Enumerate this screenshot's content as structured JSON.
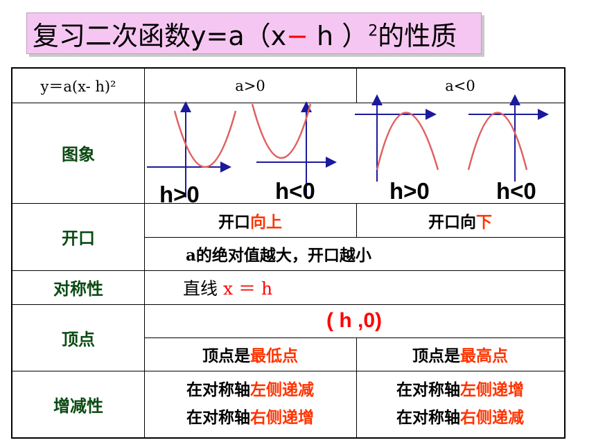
{
  "title": {
    "prefix": "复习二次函数y=a（x",
    "minus": "−",
    "suffix": " h ）",
    "sup": "2",
    "tail": "的性质"
  },
  "header": {
    "formula": "y＝a(x- h)²",
    "col_pos": "a>0",
    "col_neg": "a<0"
  },
  "rows": {
    "graph": {
      "label": "图象",
      "graph_labels": [
        "h>0",
        "h<0",
        "h>0",
        "h<0"
      ]
    },
    "opening": {
      "label": "开口",
      "pos_prefix": "开口",
      "pos_dir": "向上",
      "neg_prefix": "开口向",
      "neg_dir": "下",
      "note": "a的绝对值越大，开口越小"
    },
    "symmetry": {
      "label": "对称性",
      "prefix": "直线",
      "eq": "x ＝ h"
    },
    "vertex": {
      "label": "顶点",
      "coords": "( h ,0)",
      "pos_prefix": "顶点是",
      "pos_val": "最低点",
      "neg_prefix": "顶点是",
      "neg_val": "最高点"
    },
    "monotonic": {
      "label": "增减性",
      "axis_prefix": "在对称轴",
      "pos_line1": "左侧递减",
      "pos_line2": "右侧递增",
      "neg_line1": "左侧递增",
      "neg_line2": "右侧递减"
    }
  },
  "colors": {
    "title_bg": "#f6c6f2",
    "accent": "#ff0000",
    "label_green": "#0a4a12",
    "curve": "#e06060",
    "axis": "#1a1a9a"
  }
}
